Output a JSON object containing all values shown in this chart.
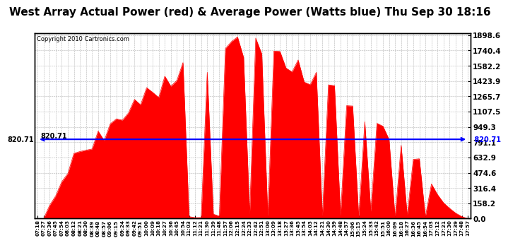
{
  "title": "West Array Actual Power (red) & Average Power (Watts blue) Thu Sep 30 18:16",
  "copyright": "Copyright 2010 Cartronics.com",
  "average_power": 820.71,
  "y_ticks": [
    0.0,
    158.2,
    316.4,
    474.6,
    632.9,
    791.1,
    949.3,
    1107.5,
    1265.7,
    1423.9,
    1582.2,
    1740.4,
    1898.6
  ],
  "y_max": 1898.6,
  "y_min": 0.0,
  "avg_line_color": "blue",
  "fill_color": "red",
  "background_color": "white",
  "grid_color": "#aaaaaa",
  "title_fontsize": 11,
  "avg_label": "820.71",
  "x_start_hour": 7,
  "x_start_min": 18,
  "x_end_hour": 18,
  "x_end_min": 0,
  "time_step_min": 9
}
